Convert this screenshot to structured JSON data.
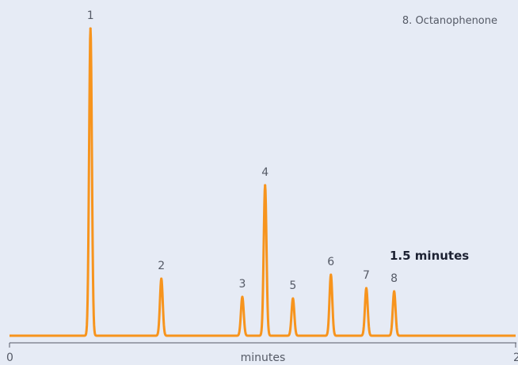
{
  "chart_data": {
    "type": "line",
    "colors": {
      "background": "#e6ebf5",
      "trace": "#f7941d",
      "axis": "#555a66",
      "callout": "#1d2233"
    },
    "xlabel": "minutes",
    "x_tick_labels": [
      "0",
      "2"
    ],
    "xlim": [
      0,
      2
    ],
    "grid": false,
    "baseline": 0,
    "peaks": [
      {
        "label": "1",
        "x": 0.32,
        "height": 388
      },
      {
        "label": "2",
        "x": 0.6,
        "height": 72
      },
      {
        "label": "3",
        "x": 0.92,
        "height": 49
      },
      {
        "label": "4",
        "x": 1.01,
        "height": 190
      },
      {
        "label": "5",
        "x": 1.12,
        "height": 47
      },
      {
        "label": "6",
        "x": 1.27,
        "height": 77
      },
      {
        "label": "7",
        "x": 1.41,
        "height": 60
      },
      {
        "label": "8",
        "x": 1.52,
        "height": 56
      }
    ],
    "legend": [
      "8. Octanophenone"
    ],
    "annotation": "1.5 minutes"
  }
}
